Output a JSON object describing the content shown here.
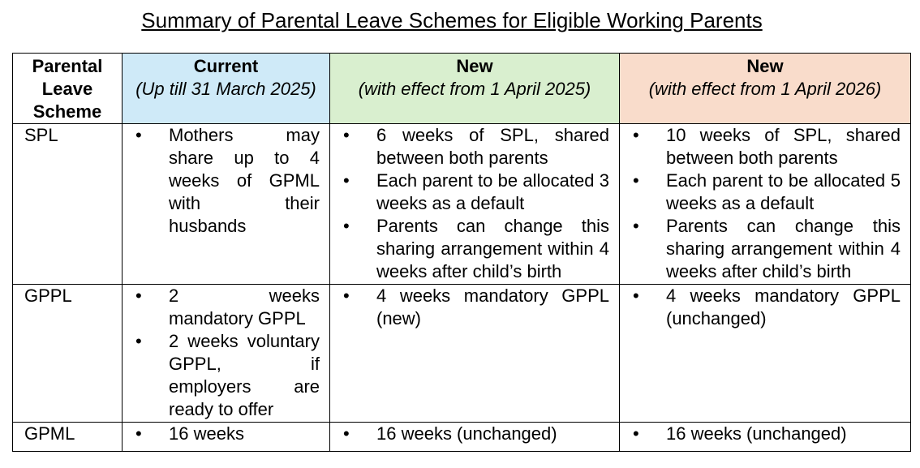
{
  "title": "Summary of Parental Leave Schemes for Eligible Working Parents",
  "header": {
    "scheme": "Parental Leave Scheme",
    "current_heading": "Current",
    "current_sub": "(Up till 31 March 2025)",
    "new1_heading": "New",
    "new1_sub": "(with effect from 1 April 2025)",
    "new2_heading": "New",
    "new2_sub": "(with effect from 1 April 2026)"
  },
  "colors": {
    "current": "#cfeaf8",
    "new2025": "#d9efcf",
    "new2026": "#f9dccb"
  },
  "rows": [
    {
      "name": "SPL",
      "current": [
        "Mothers may share up to 4 weeks of GPML with their husbands"
      ],
      "new2025": [
        "6 weeks of SPL, shared between both parents",
        "Each parent to be allocated 3 weeks as a default",
        "Parents can change this sharing arrangement within 4 weeks after child’s birth"
      ],
      "new2026": [
        "10 weeks of SPL, shared between both parents",
        "Each parent to be allocated 5 weeks as a default",
        "Parents can change this sharing arrangement within 4 weeks after child’s birth"
      ]
    },
    {
      "name": "GPPL",
      "current": [
        "2 weeks mandatory GPPL",
        "2 weeks voluntary GPPL, if employers are ready to offer"
      ],
      "new2025": [
        "4 weeks mandatory GPPL (new)"
      ],
      "new2026": [
        "4 weeks mandatory GPPL (unchanged)"
      ]
    },
    {
      "name": "GPML",
      "current": [
        "16 weeks"
      ],
      "new2025": [
        "16 weeks (unchanged)"
      ],
      "new2026": [
        "16 weeks (unchanged)"
      ]
    }
  ]
}
